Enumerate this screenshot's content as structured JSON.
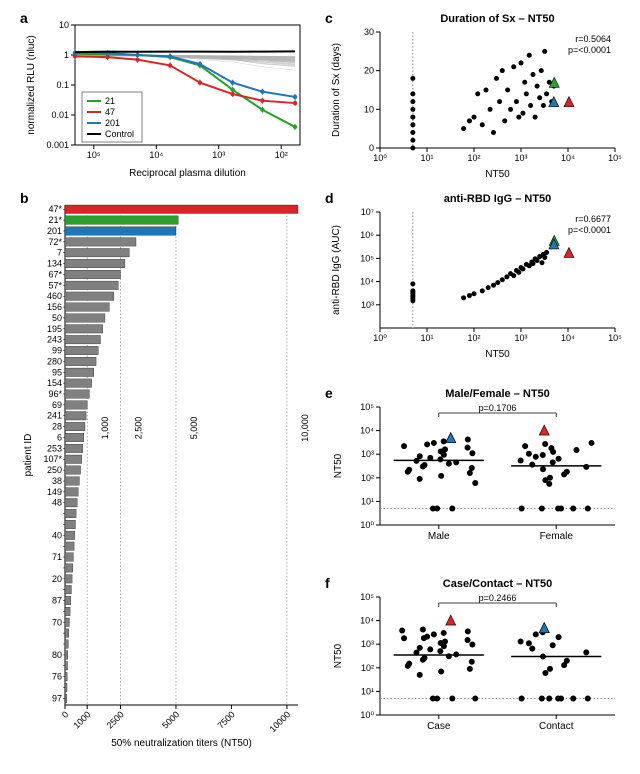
{
  "panels": {
    "a": {
      "label": "a"
    },
    "b": {
      "label": "b"
    },
    "c": {
      "label": "c"
    },
    "d": {
      "label": "d"
    },
    "e": {
      "label": "e"
    },
    "f": {
      "label": "f"
    }
  },
  "panel_a": {
    "type": "line",
    "xlabel": "Reciprocal plasma dilution",
    "ylabel": "normalized RLU (nluc)",
    "xlim": [
      50,
      200000
    ],
    "ylim": [
      0.001,
      10
    ],
    "xscale": "log_rev",
    "yscale": "log",
    "x_ticks": [
      100000,
      10000,
      1000,
      100
    ],
    "x_tick_labels": [
      "10^5",
      "10^4",
      "10^3",
      "10^2"
    ],
    "y_ticks": [
      10,
      1,
      0.1,
      0.01,
      0.001
    ],
    "y_tick_labels": [
      "10",
      "1",
      "0.1",
      "0.01",
      "0.001"
    ],
    "highlight_series": [
      {
        "id": "21",
        "color": "#2aa02a",
        "x": [
          200000,
          60000,
          20000,
          6000,
          2000,
          600,
          200,
          60
        ],
        "y": [
          1.1,
          1.05,
          1.0,
          0.85,
          0.45,
          0.07,
          0.015,
          0.004
        ]
      },
      {
        "id": "47",
        "color": "#d62728",
        "x": [
          200000,
          60000,
          20000,
          6000,
          2000,
          600,
          200,
          60
        ],
        "y": [
          0.9,
          0.85,
          0.7,
          0.45,
          0.12,
          0.05,
          0.03,
          0.025
        ]
      },
      {
        "id": "201",
        "color": "#1f77b4",
        "x": [
          200000,
          60000,
          20000,
          6000,
          2000,
          600,
          200,
          60
        ],
        "y": [
          1.2,
          1.15,
          1.0,
          0.9,
          0.5,
          0.12,
          0.06,
          0.04
        ]
      },
      {
        "id": "Control",
        "color": "#000000",
        "x": [
          200000,
          60000,
          20000,
          6000,
          2000,
          600,
          200,
          60
        ],
        "y": [
          1.25,
          1.3,
          1.28,
          1.3,
          1.3,
          1.28,
          1.3,
          1.32
        ]
      }
    ],
    "legend": [
      {
        "label": "21",
        "color": "#2aa02a"
      },
      {
        "label": "47",
        "color": "#d62728"
      },
      {
        "label": "201",
        "color": "#1f77b4"
      },
      {
        "label": "Control",
        "color": "#000000"
      }
    ],
    "background_line_color": "#b0b0b0",
    "background_line_count": 50,
    "line_width": 1.5
  },
  "panel_b": {
    "type": "bar_horizontal",
    "xlabel": "50% neutralization titers (NT50)",
    "ylabel": "patient ID",
    "xlim": [
      0,
      10500
    ],
    "x_ticks": [
      0,
      1000,
      2500,
      5000,
      7500,
      10000
    ],
    "x_tick_labels": [
      "0",
      "1000",
      "2500",
      "5000",
      "7500",
      "10000"
    ],
    "inner_vlines": [
      1000,
      2500,
      5000,
      10000
    ],
    "inner_vlabels": [
      "1,000",
      "2,500",
      "5,000",
      "10,000"
    ],
    "bar_default_color": "#808080",
    "highlight": {
      "47*": "#d62728",
      "21*": "#2aa02a",
      "201": "#1f77b4"
    },
    "bars": [
      {
        "id": "47*",
        "v": 10500
      },
      {
        "id": "21*",
        "v": 5100
      },
      {
        "id": "201",
        "v": 5000
      },
      {
        "id": "72*",
        "v": 3200
      },
      {
        "id": "7",
        "v": 2900
      },
      {
        "id": "134",
        "v": 2700
      },
      {
        "id": "67*",
        "v": 2500
      },
      {
        "id": "57*",
        "v": 2400
      },
      {
        "id": "460",
        "v": 2200
      },
      {
        "id": "156",
        "v": 2000
      },
      {
        "id": "50",
        "v": 1800
      },
      {
        "id": "195",
        "v": 1700
      },
      {
        "id": "243",
        "v": 1600
      },
      {
        "id": "99",
        "v": 1500
      },
      {
        "id": "280",
        "v": 1400
      },
      {
        "id": "95",
        "v": 1300
      },
      {
        "id": "154",
        "v": 1200
      },
      {
        "id": "96*",
        "v": 1100
      },
      {
        "id": "69",
        "v": 1000
      },
      {
        "id": "241",
        "v": 950
      },
      {
        "id": "28",
        "v": 900
      },
      {
        "id": "6",
        "v": 850
      },
      {
        "id": "253",
        "v": 800
      },
      {
        "id": "107*",
        "v": 750
      },
      {
        "id": "250",
        "v": 700
      },
      {
        "id": "38",
        "v": 650
      },
      {
        "id": "149",
        "v": 600
      },
      {
        "id": "48",
        "v": 550
      },
      {
        "id": "-a",
        "v": 500
      },
      {
        "id": "-b",
        "v": 470
      },
      {
        "id": "40",
        "v": 440
      },
      {
        "id": "-c",
        "v": 410
      },
      {
        "id": "71",
        "v": 380
      },
      {
        "id": "-d",
        "v": 350
      },
      {
        "id": "20",
        "v": 320
      },
      {
        "id": "-e",
        "v": 290
      },
      {
        "id": "87",
        "v": 260
      },
      {
        "id": "-f",
        "v": 230
      },
      {
        "id": "70",
        "v": 200
      },
      {
        "id": "-g",
        "v": 170
      },
      {
        "id": "-h",
        "v": 150
      },
      {
        "id": "80",
        "v": 130
      },
      {
        "id": "-i",
        "v": 115
      },
      {
        "id": "76",
        "v": 100
      },
      {
        "id": "-j",
        "v": 90
      },
      {
        "id": "97",
        "v": 80
      }
    ]
  },
  "panel_c": {
    "type": "scatter",
    "title": "Duration of Sx – NT50",
    "xlabel": "NT50",
    "ylabel": "Duration of Sx (days)",
    "xscale": "log",
    "xlim": [
      1,
      100000
    ],
    "ylim": [
      0,
      30
    ],
    "x_ticks": [
      1,
      10,
      100,
      1000,
      10000,
      100000
    ],
    "x_tick_labels": [
      "10^0",
      "10^1",
      "10^2",
      "10^3",
      "10^4",
      "10^5"
    ],
    "y_ticks": [
      0,
      10,
      20,
      30
    ],
    "vline": 5,
    "stats": {
      "r": "r=0.5064",
      "p": "p=<0.0001"
    },
    "points": [
      [
        5,
        2
      ],
      [
        5,
        4
      ],
      [
        5,
        6
      ],
      [
        5,
        8
      ],
      [
        5,
        10
      ],
      [
        5,
        12
      ],
      [
        5,
        14
      ],
      [
        5,
        18
      ],
      [
        5,
        0
      ],
      [
        60,
        5
      ],
      [
        80,
        7
      ],
      [
        100,
        8
      ],
      [
        120,
        14
      ],
      [
        150,
        6
      ],
      [
        180,
        15
      ],
      [
        220,
        10
      ],
      [
        260,
        4
      ],
      [
        300,
        18
      ],
      [
        350,
        12
      ],
      [
        400,
        20
      ],
      [
        450,
        7
      ],
      [
        520,
        15
      ],
      [
        600,
        10
      ],
      [
        700,
        21
      ],
      [
        800,
        12
      ],
      [
        900,
        8
      ],
      [
        1000,
        22
      ],
      [
        1100,
        9
      ],
      [
        1200,
        17
      ],
      [
        1300,
        14
      ],
      [
        1500,
        24
      ],
      [
        1600,
        11
      ],
      [
        1800,
        19
      ],
      [
        2000,
        8
      ],
      [
        2200,
        16
      ],
      [
        2500,
        13
      ],
      [
        2700,
        20
      ],
      [
        3000,
        11
      ],
      [
        3200,
        25
      ],
      [
        3500,
        14
      ],
      [
        4000,
        17
      ],
      [
        4500,
        12
      ],
      [
        5000,
        16
      ]
    ],
    "highlight_points": [
      {
        "x": 5100,
        "y": 17,
        "color": "#2aa02a"
      },
      {
        "x": 5000,
        "y": 12,
        "color": "#1f77b4"
      },
      {
        "x": 10500,
        "y": 12,
        "color": "#d62728"
      }
    ],
    "point_color": "#000000",
    "point_size": 2.5
  },
  "panel_d": {
    "type": "scatter",
    "title": "anti-RBD IgG – NT50",
    "xlabel": "NT50",
    "ylabel": "anti-RBD IgG (AUC)",
    "xscale": "log",
    "yscale": "log",
    "xlim": [
      1,
      100000
    ],
    "ylim": [
      100,
      10000000
    ],
    "x_ticks": [
      1,
      10,
      100,
      1000,
      10000,
      100000
    ],
    "x_tick_labels": [
      "10^0",
      "10^1",
      "10^2",
      "10^3",
      "10^4",
      "10^5"
    ],
    "y_ticks": [
      1000,
      10000,
      100000,
      1000000,
      10000000
    ],
    "y_tick_labels": [
      "10^3",
      "10^4",
      "10^5",
      "10^6",
      "10^7"
    ],
    "vline": 5,
    "stats": {
      "r": "r=0.6677",
      "p": "p=<0.0001"
    },
    "points": [
      [
        5,
        1500
      ],
      [
        5,
        1800
      ],
      [
        5,
        2200
      ],
      [
        5,
        2500
      ],
      [
        5,
        3000
      ],
      [
        5,
        3500
      ],
      [
        5,
        4000
      ],
      [
        5,
        8000
      ],
      [
        60,
        2000
      ],
      [
        80,
        2500
      ],
      [
        100,
        3000
      ],
      [
        150,
        4000
      ],
      [
        200,
        5500
      ],
      [
        260,
        7000
      ],
      [
        320,
        9000
      ],
      [
        400,
        12000
      ],
      [
        500,
        16000
      ],
      [
        600,
        22000
      ],
      [
        700,
        18000
      ],
      [
        800,
        30000
      ],
      [
        900,
        25000
      ],
      [
        1000,
        40000
      ],
      [
        1100,
        35000
      ],
      [
        1300,
        55000
      ],
      [
        1500,
        48000
      ],
      [
        1700,
        70000
      ],
      [
        2000,
        95000
      ],
      [
        2200,
        80000
      ],
      [
        2500,
        120000
      ],
      [
        3000,
        150000
      ],
      [
        3200,
        110000
      ],
      [
        3500,
        180000
      ],
      [
        2800,
        65000
      ],
      [
        1800,
        60000
      ]
    ],
    "highlight_points": [
      {
        "x": 5100,
        "y": 600000,
        "color": "#2aa02a"
      },
      {
        "x": 5000,
        "y": 420000,
        "color": "#1f77b4"
      },
      {
        "x": 10500,
        "y": 180000,
        "color": "#d62728"
      }
    ],
    "point_color": "#000000",
    "point_size": 2.5
  },
  "panel_e": {
    "type": "strip",
    "title": "Male/Female – NT50",
    "ylabel": "NT50",
    "yscale": "log",
    "ylim": [
      1,
      100000
    ],
    "y_ticks": [
      1,
      10,
      100,
      1000,
      10000,
      100000
    ],
    "y_tick_labels": [
      "10^0",
      "10^1",
      "10^2",
      "10^3",
      "10^4",
      "10^5"
    ],
    "hline": 5,
    "pvalue": "p=0.1706",
    "categories": [
      "Male",
      "Female"
    ],
    "medians": [
      550,
      320
    ],
    "data": {
      "Male": [
        5,
        5,
        5,
        60,
        90,
        120,
        160,
        180,
        220,
        260,
        300,
        350,
        400,
        450,
        520,
        600,
        700,
        820,
        950,
        1100,
        1300,
        1600,
        1900,
        2200,
        2600,
        3000,
        3500,
        4200
      ],
      "Female": [
        5,
        5,
        5,
        5,
        5,
        5,
        55,
        80,
        100,
        140,
        180,
        230,
        290,
        360,
        450,
        540,
        640,
        780,
        920,
        1050,
        1250,
        1500,
        1800,
        2200,
        2700,
        3000
      ]
    },
    "highlight_points": [
      {
        "cat": "Male",
        "y": 5100,
        "color": "#2aa02a"
      },
      {
        "cat": "Male",
        "y": 5000,
        "color": "#1f77b4"
      },
      {
        "cat": "Female",
        "y": 10500,
        "color": "#d62728"
      }
    ],
    "point_color": "#000000",
    "point_size": 3
  },
  "panel_f": {
    "type": "strip",
    "title": "Case/Contact – NT50",
    "ylabel": "NT50",
    "yscale": "log",
    "ylim": [
      1,
      100000
    ],
    "y_ticks": [
      1,
      10,
      100,
      1000,
      10000,
      100000
    ],
    "y_tick_labels": [
      "10^0",
      "10^1",
      "10^2",
      "10^3",
      "10^4",
      "10^5"
    ],
    "hline": 5,
    "pvalue": "p=0.2466",
    "categories": [
      "Case",
      "Contact"
    ],
    "medians": [
      350,
      300
    ],
    "data": {
      "Case": [
        5,
        5,
        5,
        5,
        50,
        70,
        90,
        120,
        150,
        180,
        220,
        260,
        310,
        370,
        440,
        510,
        600,
        700,
        830,
        970,
        1120,
        1300,
        1500,
        1790,
        2100,
        2600,
        3000,
        3500,
        4200,
        3800,
        1800
      ],
      "Contact": [
        5,
        5,
        5,
        5,
        5,
        5,
        5,
        60,
        90,
        130,
        200,
        300,
        450,
        650,
        900,
        1300,
        2000,
        2600,
        3200,
        1100
      ]
    },
    "highlight_points": [
      {
        "cat": "Case",
        "y": 10500,
        "color": "#d62728"
      },
      {
        "cat": "Contact",
        "y": 5100,
        "color": "#2aa02a"
      },
      {
        "cat": "Contact",
        "y": 5000,
        "color": "#1f77b4"
      }
    ],
    "point_color": "#000000",
    "point_size": 3
  },
  "colors": {
    "axis": "#000000",
    "grid": "#cccccc",
    "background": "#ffffff"
  }
}
